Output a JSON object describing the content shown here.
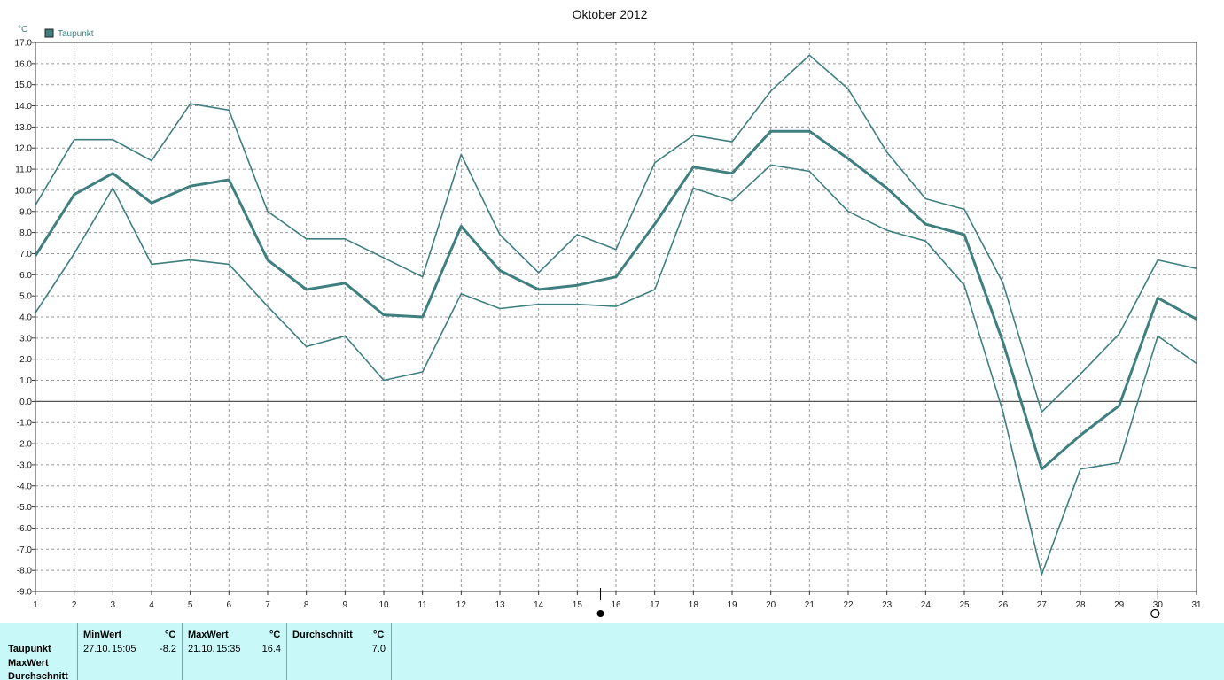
{
  "chart_data": {
    "type": "line",
    "title": "Oktober 2012",
    "ylabel": "°C",
    "xlabel": "",
    "legend": {
      "placement": "top-left",
      "entries": [
        "Taupunkt"
      ]
    },
    "grid": true,
    "xlim": [
      1,
      31
    ],
    "ylim": [
      -9,
      17
    ],
    "x": [
      1,
      2,
      3,
      4,
      5,
      6,
      7,
      8,
      9,
      10,
      11,
      12,
      13,
      14,
      15,
      16,
      17,
      18,
      19,
      20,
      21,
      22,
      23,
      24,
      25,
      26,
      27,
      28,
      29,
      30,
      31
    ],
    "x_tick_labels": [
      "1",
      "2",
      "3",
      "4",
      "5",
      "6",
      "7",
      "8",
      "9",
      "10",
      "11",
      "12",
      "13",
      "14",
      "15",
      "16",
      "17",
      "18",
      "19",
      "20",
      "21",
      "22",
      "23",
      "24",
      "25",
      "26",
      "27",
      "28",
      "29",
      "30",
      "31"
    ],
    "y_ticks": [
      17,
      16,
      15,
      14,
      13,
      12,
      11,
      10,
      9,
      8,
      7,
      6,
      5,
      4,
      3,
      2,
      1,
      0,
      -1,
      -2,
      -3,
      -4,
      -5,
      -6,
      -7,
      -8,
      -9
    ],
    "y_tick_labels": [
      "17.0",
      "16.0",
      "15.0",
      "14.0",
      "13.0",
      "12.0",
      "11.0",
      "10.0",
      "9.0",
      "8.0",
      "7.0",
      "6.0",
      "5.0",
      "4.0",
      "3.0",
      "2.0",
      "1.0",
      "0.0",
      "-1.0",
      "-2.0",
      "-3.0",
      "-4.0",
      "-5.0",
      "-6.0",
      "-7.0",
      "-8.0",
      "-9.0"
    ],
    "color": "#3f7f7f",
    "series": [
      {
        "role": "max",
        "values": [
          9.3,
          12.4,
          12.4,
          11.4,
          14.1,
          13.8,
          9.0,
          7.7,
          7.7,
          6.8,
          5.9,
          11.7,
          7.9,
          6.1,
          7.9,
          7.2,
          11.3,
          12.6,
          12.3,
          14.7,
          16.4,
          14.8,
          11.8,
          9.6,
          9.1,
          5.6,
          -0.5,
          1.3,
          3.2,
          6.7,
          6.3
        ]
      },
      {
        "role": "mean",
        "values": [
          6.9,
          9.8,
          10.8,
          9.4,
          10.2,
          10.5,
          6.7,
          5.3,
          5.6,
          4.1,
          4.0,
          8.3,
          6.2,
          5.3,
          5.5,
          5.9,
          8.4,
          11.1,
          10.8,
          12.8,
          12.8,
          11.5,
          10.1,
          8.4,
          7.9,
          2.8,
          -3.2,
          -1.6,
          -0.2,
          4.9,
          3.9
        ]
      },
      {
        "role": "min",
        "values": [
          4.2,
          7.0,
          10.1,
          6.5,
          6.7,
          6.5,
          4.5,
          2.6,
          3.1,
          1.0,
          1.4,
          5.1,
          4.4,
          4.6,
          4.6,
          4.5,
          5.3,
          10.1,
          9.5,
          11.2,
          10.9,
          9.0,
          8.1,
          7.6,
          5.5,
          -0.5,
          -8.2,
          -3.2,
          -2.9,
          3.1,
          1.8
        ]
      }
    ],
    "markers": [
      {
        "symbol": "filled-circle",
        "x": 15.6
      },
      {
        "symbol": "open-circle",
        "x": 30
      }
    ]
  },
  "stats": {
    "rows": [
      "Taupunkt",
      "MaxWert",
      "Durchschnitt"
    ],
    "columns": {
      "min": {
        "header": "MinWert",
        "unit": "°C",
        "date": "27.10.",
        "time": "15:05",
        "value": "-8.2"
      },
      "max": {
        "header": "MaxWert",
        "unit": "°C",
        "date": "21.10.",
        "time": "15:35",
        "value": "16.4"
      },
      "avg": {
        "header": "Durchschnitt",
        "unit": "°C",
        "value": "7.0"
      }
    }
  }
}
